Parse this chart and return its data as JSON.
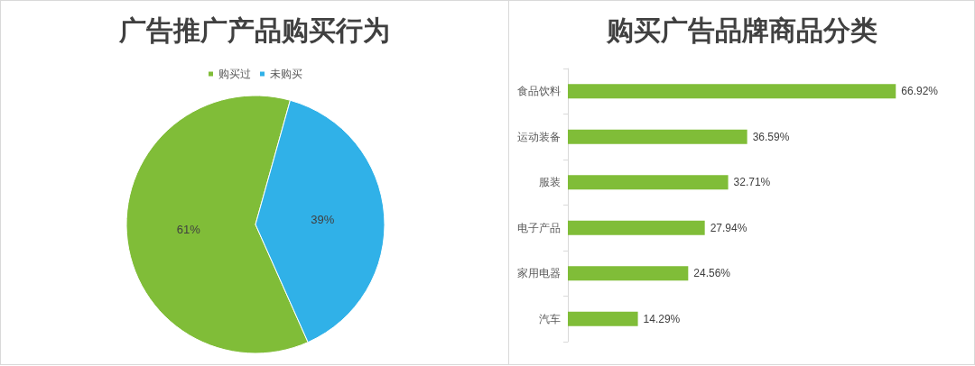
{
  "chart_data": [
    {
      "type": "pie",
      "title": "广告推广产品购买行为",
      "categories": [
        "购买过",
        "未购买"
      ],
      "values": [
        61,
        39
      ],
      "colors": [
        "#80bd38",
        "#30b1e8"
      ],
      "value_labels": [
        "61%",
        "39%"
      ],
      "legend": "top"
    },
    {
      "type": "bar",
      "orientation": "horizontal",
      "title": "购买广告品牌商品分类",
      "categories": [
        "食品饮料",
        "运动装备",
        "服装",
        "电子产品",
        "家用电器",
        "汽车"
      ],
      "values": [
        66.92,
        36.59,
        32.71,
        27.94,
        24.56,
        14.29
      ],
      "color": "#80bd38",
      "value_labels": [
        "66.92%",
        "36.59%",
        "32.71%",
        "27.94%",
        "24.56%",
        "14.29%"
      ],
      "tick_labels": "y"
    }
  ]
}
